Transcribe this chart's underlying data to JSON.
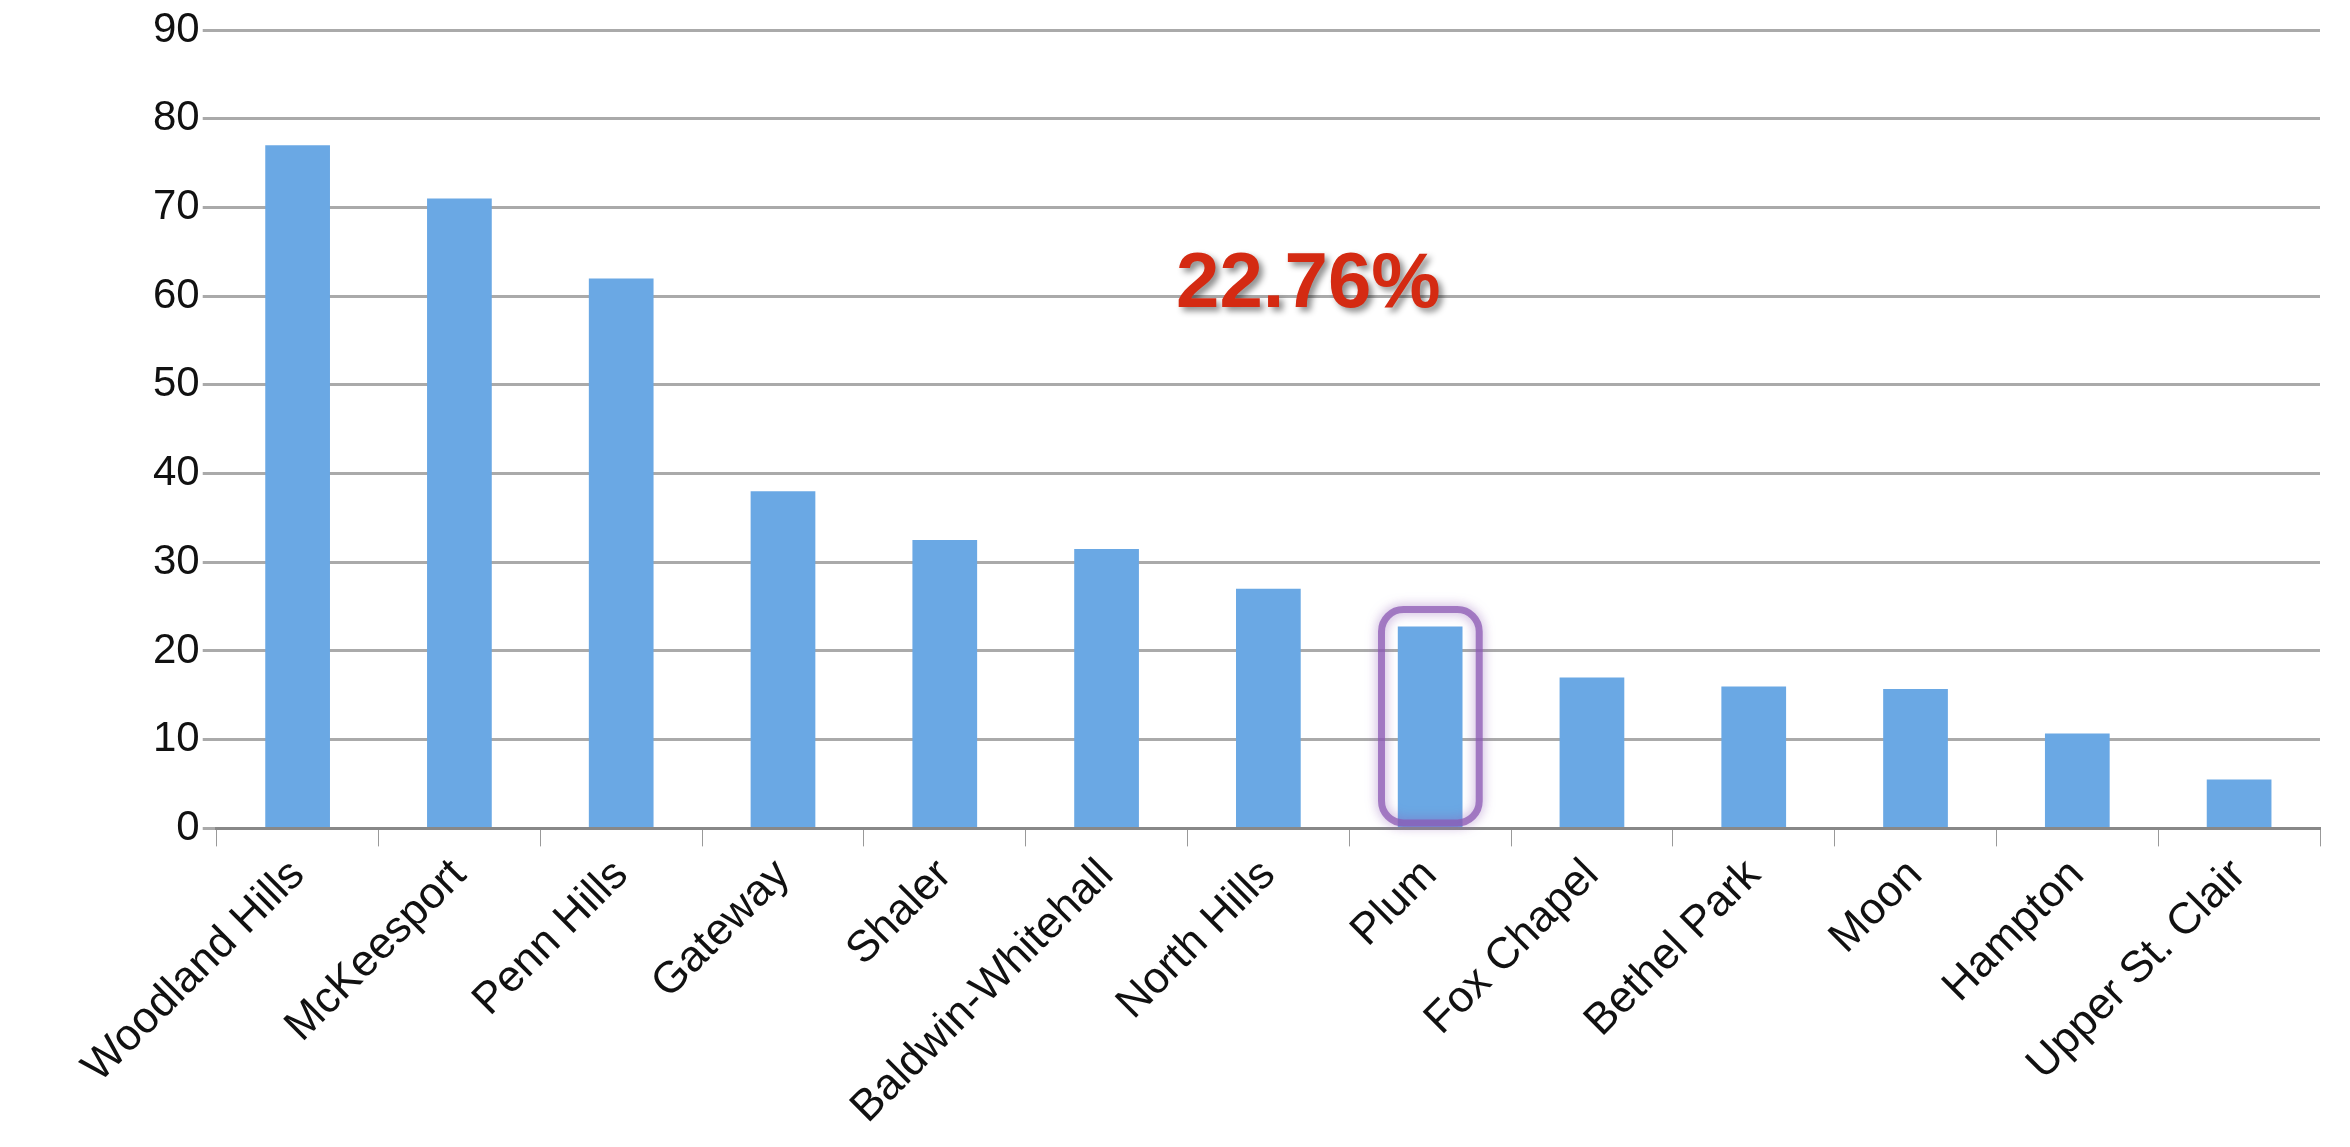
{
  "chart_data": {
    "type": "bar",
    "categories": [
      "Woodland Hills",
      "McKeesport",
      "Penn Hills",
      "Gateway",
      "Shaler",
      "Baldwin-Whitehall",
      "North Hills",
      "Plum",
      "Fox Chapel",
      "Bethel Park",
      "Moon",
      "Hampton",
      "Upper St. Clair"
    ],
    "values": [
      77,
      71,
      62,
      38,
      32.5,
      31.5,
      27,
      22.76,
      17,
      16,
      15.7,
      10.7,
      5.5
    ],
    "color": "#6aa8e4",
    "ylim": [
      0,
      90
    ],
    "yticks": [
      0,
      10,
      20,
      30,
      40,
      50,
      60,
      70,
      80,
      90
    ],
    "grid": "y",
    "legend": false,
    "annotations": [
      "22.76%"
    ]
  }
}
